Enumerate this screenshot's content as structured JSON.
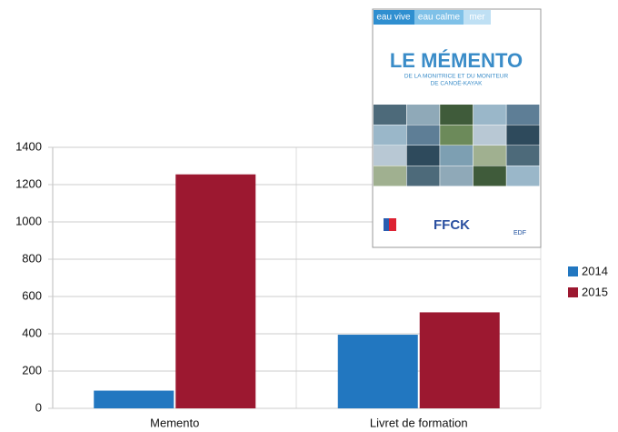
{
  "chart_data": {
    "type": "bar",
    "categories": [
      "Memento",
      "Livret de formation"
    ],
    "series": [
      {
        "name": "2014",
        "color": "#2277c0",
        "values": [
          95,
          395
        ]
      },
      {
        "name": "2015",
        "color": "#9c1830",
        "values": [
          1255,
          515
        ]
      }
    ],
    "ylim": [
      0,
      1400
    ],
    "yticks": [
      0,
      200,
      400,
      600,
      800,
      1000,
      1200,
      1400
    ],
    "grid": true,
    "legend": "right"
  },
  "cover": {
    "tabs": [
      "eau vive",
      "eau calme",
      "mer"
    ],
    "title": "LE MÉMENTO",
    "subtitle": [
      "DE LA MONITRICE ET DU MONITEUR",
      "DE CANOË-KAYAK"
    ],
    "logos": [
      "FFCK",
      "EDF"
    ]
  }
}
